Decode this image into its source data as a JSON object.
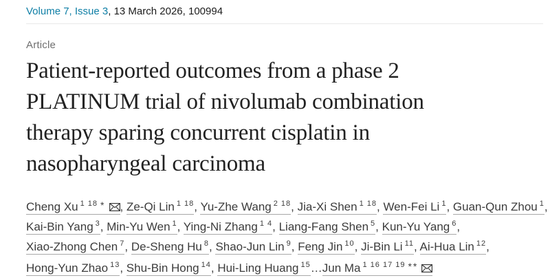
{
  "meta": {
    "volume_issue_link": "Volume 7, Issue 3",
    "date_id_text": ", 13 March 2026, 100994"
  },
  "article": {
    "label": "Article",
    "title_lines": [
      "Patient-reported outcomes from a phase 2",
      "PLATINUM trial of nivolumab combination",
      "therapy sparing concurrent cisplatin in",
      "nasopharyngeal carcinoma"
    ]
  },
  "icons": {
    "envelope": "envelope-icon"
  },
  "colors": {
    "link_teal": "#0f7fa6",
    "title_text": "#212121",
    "label_gray": "#6f6f6f",
    "author_text": "#3c3c3c",
    "author_underline": "#a8a8a8",
    "divider": "#e9e9e9"
  },
  "author_lines": [
    [
      {
        "name": "Cheng Xu",
        "sup": "1 18",
        "marks": "*",
        "envelope": true,
        "sep": ", "
      },
      {
        "name": "Ze-Qi Lin",
        "sup": "1 18",
        "sep": ", "
      },
      {
        "name": "Yu-Zhe Wang",
        "sup": "2 18",
        "sep": ", "
      },
      {
        "name": "Jia-Xi Shen",
        "sup": "1 18",
        "sep": ", "
      },
      {
        "name": "Wen-Fei Li",
        "sup": "1",
        "sep": ", "
      },
      {
        "name": "Guan-Qun Zhou",
        "sup": "1",
        "sep": ","
      }
    ],
    [
      {
        "name": "Kai-Bin Yang",
        "sup": "3",
        "sep": ", "
      },
      {
        "name": "Min-Yu Wen",
        "sup": "1",
        "sep": ", "
      },
      {
        "name": "Ying-Ni Zhang",
        "sup": "1 4",
        "sep": ", "
      },
      {
        "name": "Liang-Fang Shen",
        "sup": "5",
        "sep": ", "
      },
      {
        "name": "Kun-Yu Yang",
        "sup": "6",
        "sep": ","
      }
    ],
    [
      {
        "name": "Xiao-Zhong Chen",
        "sup": "7",
        "sep": ", "
      },
      {
        "name": "De-Sheng Hu",
        "sup": "8",
        "sep": ", "
      },
      {
        "name": "Shao-Jun Lin",
        "sup": "9",
        "sep": ", "
      },
      {
        "name": "Feng Jin",
        "sup": "10",
        "sep": ", "
      },
      {
        "name": "Ji-Bin Li",
        "sup": "11",
        "sep": ", "
      },
      {
        "name": "Ai-Hua Lin",
        "sup": "12",
        "sep": ","
      }
    ],
    [
      {
        "name": "Hong-Yun Zhao",
        "sup": "13",
        "sep": ", "
      },
      {
        "name": "Shu-Bin Hong",
        "sup": "14",
        "sep": ", "
      },
      {
        "name": "Hui-Ling Huang",
        "sup": "15",
        "sep": "…"
      },
      {
        "name": "Jun Ma",
        "sup": "1 16 17 19",
        "marks": "**",
        "envelope": true,
        "sep": ""
      }
    ]
  ]
}
